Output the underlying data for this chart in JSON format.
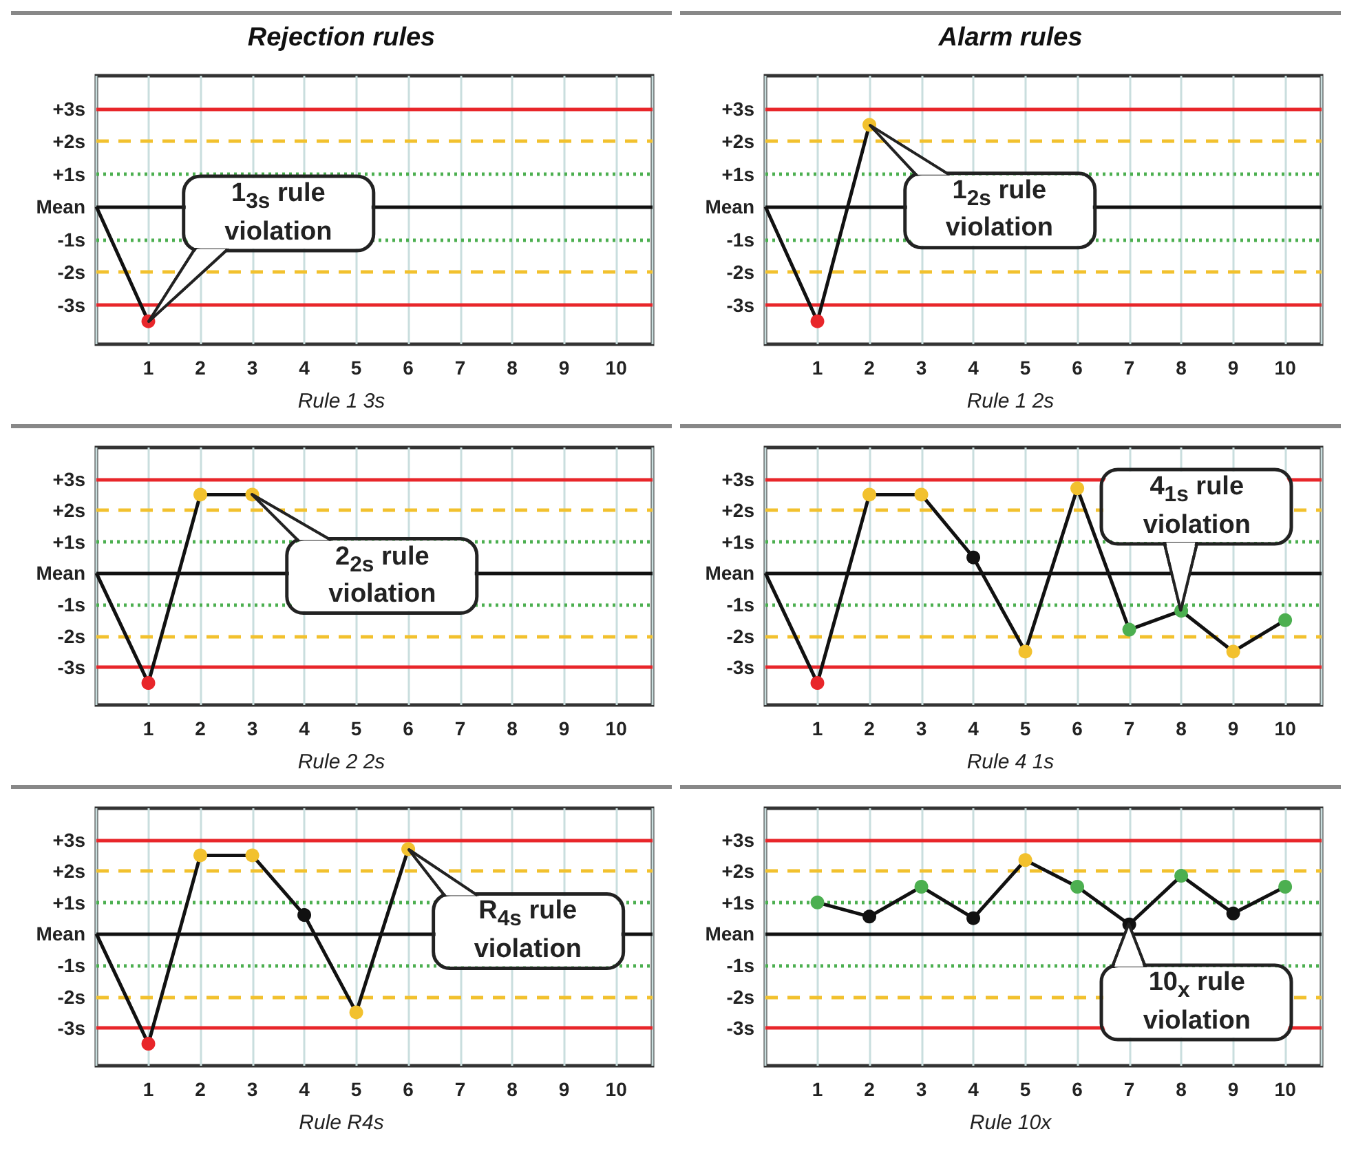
{
  "chart_data": [
    {
      "type": "line",
      "subtitle": "Rejection rules",
      "title": "Rule 1 3s",
      "x": [
        0,
        1
      ],
      "values": [
        0,
        -3.5
      ],
      "color": "#111111",
      "colors": [
        null,
        "#e8262a"
      ],
      "marker": "circle",
      "xlim": [
        0,
        10.7
      ],
      "xticks": [
        1,
        2,
        3,
        4,
        5,
        6,
        7,
        8,
        9,
        10
      ],
      "ylim": [
        -4.2,
        4
      ],
      "yticks": [
        {
          "value": 3,
          "label": "+3s"
        },
        {
          "value": 2,
          "label": "+2s"
        },
        {
          "value": 1,
          "label": "+1s"
        },
        {
          "value": 0,
          "label": "Mean"
        },
        {
          "value": -1,
          "label": "-1s"
        },
        {
          "value": -2,
          "label": "-2s"
        },
        {
          "value": -3,
          "label": "-3s"
        }
      ],
      "grid": "x",
      "ref_lines": [
        {
          "axis": "y",
          "value": 3,
          "color": "#e8262a",
          "line_style": "solid"
        },
        {
          "axis": "y",
          "value": 2,
          "color": "#f2c12e",
          "line_style": "dashed"
        },
        {
          "axis": "y",
          "value": 1,
          "color": "#4caf50",
          "line_style": "dotted"
        },
        {
          "axis": "y",
          "value": 0,
          "color": "#111111",
          "line_style": "solid"
        },
        {
          "axis": "y",
          "value": -1,
          "color": "#4caf50",
          "line_style": "dotted"
        },
        {
          "axis": "y",
          "value": -2,
          "color": "#f2c12e",
          "line_style": "dashed"
        },
        {
          "axis": "y",
          "value": -3,
          "color": "#e8262a",
          "line_style": "solid"
        }
      ],
      "annotations": [
        {
          "text": "1$_{3s}$ rule violation",
          "x": 1,
          "y": -3.5
        }
      ]
    },
    {
      "type": "line",
      "subtitle": "Alarm rules",
      "title": "Rule 1 2s",
      "x": [
        0,
        1,
        2
      ],
      "values": [
        0,
        -3.5,
        2.5
      ],
      "color": "#111111",
      "colors": [
        null,
        "#e8262a",
        "#f2c12e"
      ],
      "marker": "circle",
      "xlim": [
        0,
        10.7
      ],
      "xticks": [
        1,
        2,
        3,
        4,
        5,
        6,
        7,
        8,
        9,
        10
      ],
      "ylim": [
        -4.2,
        4
      ],
      "yticks": [
        {
          "value": 3,
          "label": "+3s"
        },
        {
          "value": 2,
          "label": "+2s"
        },
        {
          "value": 1,
          "label": "+1s"
        },
        {
          "value": 0,
          "label": "Mean"
        },
        {
          "value": -1,
          "label": "-1s"
        },
        {
          "value": -2,
          "label": "-2s"
        },
        {
          "value": -3,
          "label": "-3s"
        }
      ],
      "grid": "x",
      "ref_lines": [
        {
          "axis": "y",
          "value": 3,
          "color": "#e8262a",
          "line_style": "solid"
        },
        {
          "axis": "y",
          "value": 2,
          "color": "#f2c12e",
          "line_style": "dashed"
        },
        {
          "axis": "y",
          "value": 1,
          "color": "#4caf50",
          "line_style": "dotted"
        },
        {
          "axis": "y",
          "value": 0,
          "color": "#111111",
          "line_style": "solid"
        },
        {
          "axis": "y",
          "value": -1,
          "color": "#4caf50",
          "line_style": "dotted"
        },
        {
          "axis": "y",
          "value": -2,
          "color": "#f2c12e",
          "line_style": "dashed"
        },
        {
          "axis": "y",
          "value": -3,
          "color": "#e8262a",
          "line_style": "solid"
        }
      ],
      "annotations": [
        {
          "text": "1$_{2s}$ rule violation",
          "x": 2,
          "y": 2.5
        }
      ]
    },
    {
      "type": "line",
      "title": "Rule 2 2s",
      "x": [
        0,
        1,
        2,
        3
      ],
      "values": [
        0,
        -3.5,
        2.5,
        2.5
      ],
      "color": "#111111",
      "colors": [
        null,
        "#e8262a",
        "#f2c12e",
        "#f2c12e"
      ],
      "marker": "circle",
      "xlim": [
        0,
        10.7
      ],
      "xticks": [
        1,
        2,
        3,
        4,
        5,
        6,
        7,
        8,
        9,
        10
      ],
      "ylim": [
        -4.2,
        4
      ],
      "yticks": [
        {
          "value": 3,
          "label": "+3s"
        },
        {
          "value": 2,
          "label": "+2s"
        },
        {
          "value": 1,
          "label": "+1s"
        },
        {
          "value": 0,
          "label": "Mean"
        },
        {
          "value": -1,
          "label": "-1s"
        },
        {
          "value": -2,
          "label": "-2s"
        },
        {
          "value": -3,
          "label": "-3s"
        }
      ],
      "grid": "x",
      "ref_lines": [
        {
          "axis": "y",
          "value": 3,
          "color": "#e8262a",
          "line_style": "solid"
        },
        {
          "axis": "y",
          "value": 2,
          "color": "#f2c12e",
          "line_style": "dashed"
        },
        {
          "axis": "y",
          "value": 1,
          "color": "#4caf50",
          "line_style": "dotted"
        },
        {
          "axis": "y",
          "value": 0,
          "color": "#111111",
          "line_style": "solid"
        },
        {
          "axis": "y",
          "value": -1,
          "color": "#4caf50",
          "line_style": "dotted"
        },
        {
          "axis": "y",
          "value": -2,
          "color": "#f2c12e",
          "line_style": "dashed"
        },
        {
          "axis": "y",
          "value": -3,
          "color": "#e8262a",
          "line_style": "solid"
        }
      ],
      "annotations": [
        {
          "text": "2$_{2s}$ rule violation",
          "x": 3,
          "y": 2.5
        }
      ]
    },
    {
      "type": "line",
      "title": "Rule 4 1s",
      "x": [
        0,
        1,
        2,
        3,
        4,
        5,
        6,
        7,
        8,
        9,
        10
      ],
      "values": [
        0,
        -3.5,
        2.5,
        2.5,
        0.5,
        -2.5,
        2.7,
        -1.8,
        -1.2,
        -2.5,
        -1.5
      ],
      "color": "#111111",
      "colors": [
        null,
        "#e8262a",
        "#f2c12e",
        "#f2c12e",
        "#111111",
        "#f2c12e",
        "#f2c12e",
        "#4caf50",
        "#4caf50",
        "#f2c12e",
        "#4caf50"
      ],
      "marker": "circle",
      "xlim": [
        0,
        10.7
      ],
      "xticks": [
        1,
        2,
        3,
        4,
        5,
        6,
        7,
        8,
        9,
        10
      ],
      "ylim": [
        -4.2,
        4
      ],
      "yticks": [
        {
          "value": 3,
          "label": "+3s"
        },
        {
          "value": 2,
          "label": "+2s"
        },
        {
          "value": 1,
          "label": "+1s"
        },
        {
          "value": 0,
          "label": "Mean"
        },
        {
          "value": -1,
          "label": "-1s"
        },
        {
          "value": -2,
          "label": "-2s"
        },
        {
          "value": -3,
          "label": "-3s"
        }
      ],
      "grid": "x",
      "ref_lines": [
        {
          "axis": "y",
          "value": 3,
          "color": "#e8262a",
          "line_style": "solid"
        },
        {
          "axis": "y",
          "value": 2,
          "color": "#f2c12e",
          "line_style": "dashed"
        },
        {
          "axis": "y",
          "value": 1,
          "color": "#4caf50",
          "line_style": "dotted"
        },
        {
          "axis": "y",
          "value": 0,
          "color": "#111111",
          "line_style": "solid"
        },
        {
          "axis": "y",
          "value": -1,
          "color": "#4caf50",
          "line_style": "dotted"
        },
        {
          "axis": "y",
          "value": -2,
          "color": "#f2c12e",
          "line_style": "dashed"
        },
        {
          "axis": "y",
          "value": -3,
          "color": "#e8262a",
          "line_style": "solid"
        }
      ],
      "annotations": [
        {
          "text": "4$_{1s}$ rule violation",
          "x": 8,
          "y": -1.2
        }
      ]
    },
    {
      "type": "line",
      "title": "Rule R4s",
      "x": [
        0,
        1,
        2,
        3,
        4,
        5,
        6
      ],
      "values": [
        0,
        -3.5,
        2.5,
        2.5,
        0.6,
        -2.5,
        2.7
      ],
      "color": "#111111",
      "colors": [
        null,
        "#e8262a",
        "#f2c12e",
        "#f2c12e",
        "#111111",
        "#f2c12e",
        "#f2c12e"
      ],
      "marker": "circle",
      "xlim": [
        0,
        10.7
      ],
      "xticks": [
        1,
        2,
        3,
        4,
        5,
        6,
        7,
        8,
        9,
        10
      ],
      "ylim": [
        -4.2,
        4
      ],
      "yticks": [
        {
          "value": 3,
          "label": "+3s"
        },
        {
          "value": 2,
          "label": "+2s"
        },
        {
          "value": 1,
          "label": "+1s"
        },
        {
          "value": 0,
          "label": "Mean"
        },
        {
          "value": -1,
          "label": "-1s"
        },
        {
          "value": -2,
          "label": "-2s"
        },
        {
          "value": -3,
          "label": "-3s"
        }
      ],
      "grid": "x",
      "ref_lines": [
        {
          "axis": "y",
          "value": 3,
          "color": "#e8262a",
          "line_style": "solid"
        },
        {
          "axis": "y",
          "value": 2,
          "color": "#f2c12e",
          "line_style": "dashed"
        },
        {
          "axis": "y",
          "value": 1,
          "color": "#4caf50",
          "line_style": "dotted"
        },
        {
          "axis": "y",
          "value": 0,
          "color": "#111111",
          "line_style": "solid"
        },
        {
          "axis": "y",
          "value": -1,
          "color": "#4caf50",
          "line_style": "dotted"
        },
        {
          "axis": "y",
          "value": -2,
          "color": "#f2c12e",
          "line_style": "dashed"
        },
        {
          "axis": "y",
          "value": -3,
          "color": "#e8262a",
          "line_style": "solid"
        }
      ],
      "annotations": [
        {
          "text": "R$_{4s}$ rule violation",
          "x": 6,
          "y": 2.7
        }
      ]
    },
    {
      "type": "line",
      "title": "Rule 10x",
      "x": [
        1,
        2,
        3,
        4,
        5,
        6,
        7,
        8,
        9,
        10
      ],
      "values": [
        1.0,
        0.55,
        1.5,
        0.5,
        2.35,
        1.5,
        0.3,
        1.85,
        0.65,
        1.5
      ],
      "color": "#111111",
      "colors": [
        "#4caf50",
        "#111111",
        "#4caf50",
        "#111111",
        "#f2c12e",
        "#4caf50",
        "#111111",
        "#4caf50",
        "#111111",
        "#4caf50"
      ],
      "marker": "circle",
      "xlim": [
        0,
        10.7
      ],
      "xticks": [
        1,
        2,
        3,
        4,
        5,
        6,
        7,
        8,
        9,
        10
      ],
      "ylim": [
        -4.2,
        4
      ],
      "yticks": [
        {
          "value": 3,
          "label": "+3s"
        },
        {
          "value": 2,
          "label": "+2s"
        },
        {
          "value": 1,
          "label": "+1s"
        },
        {
          "value": 0,
          "label": "Mean"
        },
        {
          "value": -1,
          "label": "-1s"
        },
        {
          "value": -2,
          "label": "-2s"
        },
        {
          "value": -3,
          "label": "-3s"
        }
      ],
      "grid": "x",
      "ref_lines": [
        {
          "axis": "y",
          "value": 3,
          "color": "#e8262a",
          "line_style": "solid"
        },
        {
          "axis": "y",
          "value": 2,
          "color": "#f2c12e",
          "line_style": "dashed"
        },
        {
          "axis": "y",
          "value": 1,
          "color": "#4caf50",
          "line_style": "dotted"
        },
        {
          "axis": "y",
          "value": 0,
          "color": "#111111",
          "line_style": "solid"
        },
        {
          "axis": "y",
          "value": -1,
          "color": "#4caf50",
          "line_style": "dotted"
        },
        {
          "axis": "y",
          "value": -2,
          "color": "#f2c12e",
          "line_style": "dashed"
        },
        {
          "axis": "y",
          "value": -3,
          "color": "#e8262a",
          "line_style": "solid"
        }
      ],
      "annotations": [
        {
          "text": "10$_{x}$ rule violation",
          "x": 7,
          "y": 0.3
        }
      ]
    }
  ]
}
